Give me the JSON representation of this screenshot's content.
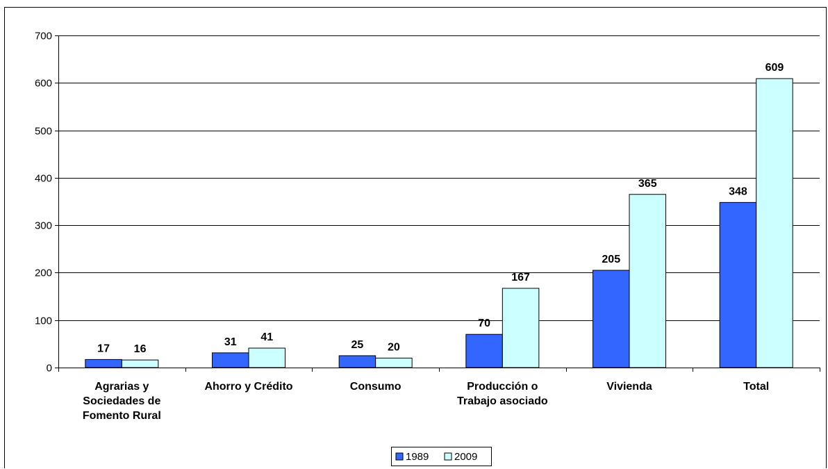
{
  "chart_data": {
    "type": "bar",
    "categories": [
      [
        "Agrarias y",
        "Sociedades de",
        "Fomento Rural"
      ],
      [
        "Ahorro y Crédito"
      ],
      [
        "Consumo"
      ],
      [
        "Producción o",
        "Trabajo asociado"
      ],
      [
        "Vivienda"
      ],
      [
        "Total"
      ]
    ],
    "series": [
      {
        "name": "1989",
        "values": [
          17,
          31,
          25,
          70,
          205,
          348
        ],
        "color": "#3366ff"
      },
      {
        "name": "2009",
        "values": [
          16,
          41,
          20,
          167,
          365,
          609
        ],
        "color": "#ccffff"
      }
    ],
    "y_ticks": [
      "0",
      "100",
      "200",
      "300",
      "400",
      "500",
      "600",
      "700"
    ],
    "ylim": [
      0,
      700
    ],
    "grid": true,
    "data_labels": true,
    "legend_position": "bottom-center"
  }
}
